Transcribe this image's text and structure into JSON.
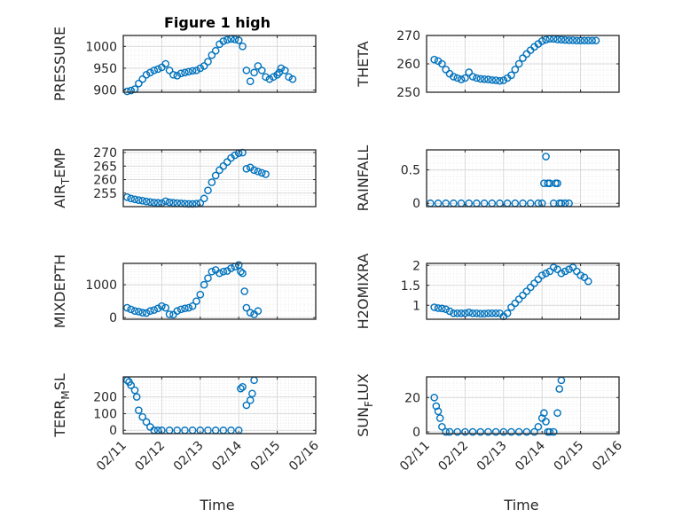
{
  "figure": {
    "title": "Figure 1 high",
    "marker_color": "#0072BD",
    "axes_color": "#262626",
    "x_tick_labels": [
      "02/11",
      "02/12",
      "02/13",
      "02/14",
      "02/15",
      "02/16"
    ],
    "x_label": "Time"
  },
  "chart_data": [
    {
      "type": "scatter",
      "ylabel": "PRESSURE",
      "xlim": [
        0,
        5
      ],
      "ylim": [
        895,
        1025
      ],
      "yticks": [
        900,
        950,
        1000
      ],
      "ytick_labels": [
        "900",
        "950",
        "1000"
      ],
      "x": [
        0.1,
        0.2,
        0.3,
        0.4,
        0.5,
        0.6,
        0.7,
        0.8,
        0.9,
        1.0,
        1.1,
        1.2,
        1.3,
        1.4,
        1.5,
        1.6,
        1.7,
        1.8,
        1.9,
        2.0,
        2.1,
        2.2,
        2.3,
        2.4,
        2.5,
        2.6,
        2.7,
        2.8,
        2.9,
        3.0,
        3.1,
        3.2,
        3.3,
        3.4,
        3.5,
        3.6,
        3.7,
        3.8,
        3.9,
        4.0,
        4.05,
        4.1,
        4.2,
        4.3,
        4.4
      ],
      "y": [
        897,
        899,
        902,
        915,
        925,
        935,
        940,
        945,
        948,
        952,
        960,
        945,
        935,
        933,
        938,
        940,
        942,
        944,
        945,
        950,
        955,
        965,
        980,
        990,
        1005,
        1012,
        1015,
        1017,
        1016,
        1014,
        1000,
        945,
        920,
        940,
        955,
        945,
        930,
        925,
        930,
        935,
        940,
        950,
        945,
        930,
        925
      ]
    },
    {
      "type": "scatter",
      "ylabel": "THETA",
      "xlim": [
        0,
        5
      ],
      "ylim": [
        250,
        270
      ],
      "yticks": [
        250,
        260,
        270
      ],
      "ytick_labels": [
        "250",
        "260",
        "270"
      ],
      "x": [
        0.2,
        0.3,
        0.4,
        0.5,
        0.6,
        0.7,
        0.8,
        0.9,
        1.0,
        1.1,
        1.2,
        1.3,
        1.4,
        1.5,
        1.6,
        1.7,
        1.8,
        1.9,
        2.0,
        2.1,
        2.2,
        2.3,
        2.4,
        2.5,
        2.6,
        2.7,
        2.8,
        2.9,
        3.0,
        3.1,
        3.2,
        3.3,
        3.4,
        3.5,
        3.6,
        3.7,
        3.8,
        3.9,
        4.0,
        4.1,
        4.2,
        4.3,
        4.4
      ],
      "y": [
        261.5,
        261,
        260,
        258,
        256.5,
        255.5,
        255,
        254.5,
        255,
        257,
        255.5,
        255,
        254.7,
        254.6,
        254.5,
        254.3,
        254.2,
        254.0,
        254.2,
        255,
        256,
        258,
        260,
        262,
        263.5,
        264.8,
        266,
        267,
        268,
        268.5,
        268.8,
        268.8,
        268.6,
        268.5,
        268.4,
        268.3,
        268.3,
        268.2,
        268.2,
        268.2,
        268.2,
        268.2,
        268.2
      ]
    },
    {
      "type": "scatter",
      "ylabel": "AIR_TEMP",
      "xlim": [
        0,
        5
      ],
      "ylim": [
        250,
        271
      ],
      "yticks": [
        255,
        260,
        265,
        270
      ],
      "ytick_labels": [
        "255",
        "260",
        "265",
        "270"
      ],
      "x": [
        0.1,
        0.2,
        0.3,
        0.4,
        0.5,
        0.6,
        0.7,
        0.8,
        0.9,
        1.0,
        1.1,
        1.2,
        1.3,
        1.4,
        1.5,
        1.6,
        1.7,
        1.8,
        1.9,
        2.0,
        2.1,
        2.2,
        2.3,
        2.4,
        2.5,
        2.6,
        2.7,
        2.8,
        2.9,
        3.0,
        3.1,
        3.2,
        3.3,
        3.4,
        3.5,
        3.6,
        3.7
      ],
      "y": [
        253.5,
        253,
        252.7,
        252.4,
        252.2,
        251.9,
        251.7,
        251.5,
        251.4,
        251.3,
        252,
        251.6,
        251.4,
        251.3,
        251.2,
        251.1,
        251.0,
        251.0,
        251.1,
        251.3,
        253,
        256,
        259,
        261.5,
        263.5,
        265,
        266.5,
        268,
        269,
        269.8,
        270,
        264,
        264.5,
        263.5,
        263,
        262.5,
        262
      ]
    },
    {
      "type": "scatter",
      "ylabel": "RAINFALL",
      "xlim": [
        0,
        5
      ],
      "ylim": [
        -0.05,
        0.8
      ],
      "yticks": [
        0,
        0.5
      ],
      "ytick_labels": [
        "0",
        "0.5"
      ],
      "x": [
        0.1,
        0.3,
        0.5,
        0.7,
        0.9,
        1.1,
        1.3,
        1.5,
        1.7,
        1.9,
        2.1,
        2.3,
        2.5,
        2.7,
        2.9,
        3.0,
        3.05,
        3.1,
        3.15,
        3.2,
        3.3,
        3.35,
        3.4,
        3.45,
        3.5,
        3.6,
        3.7
      ],
      "y": [
        0,
        0,
        0,
        0,
        0,
        0,
        0,
        0,
        0,
        0,
        0,
        0,
        0,
        0,
        0,
        0,
        0.3,
        0.7,
        0.3,
        0.3,
        0,
        0.3,
        0.3,
        0,
        0,
        0,
        0
      ]
    },
    {
      "type": "scatter",
      "ylabel": "MIXDEPTH",
      "xlim": [
        0,
        5
      ],
      "ylim": [
        -50,
        1650
      ],
      "yticks": [
        0,
        1000
      ],
      "ytick_labels": [
        "0",
        "1000"
      ],
      "x": [
        0.1,
        0.2,
        0.3,
        0.4,
        0.5,
        0.6,
        0.7,
        0.8,
        0.9,
        1.0,
        1.1,
        1.2,
        1.3,
        1.4,
        1.5,
        1.6,
        1.7,
        1.8,
        1.9,
        2.0,
        2.1,
        2.2,
        2.3,
        2.4,
        2.5,
        2.6,
        2.7,
        2.8,
        2.9,
        3.0,
        3.05,
        3.1,
        3.15,
        3.2,
        3.3,
        3.4,
        3.5
      ],
      "y": [
        300,
        250,
        200,
        180,
        150,
        140,
        200,
        230,
        280,
        350,
        300,
        100,
        90,
        200,
        250,
        280,
        300,
        350,
        500,
        700,
        1000,
        1200,
        1400,
        1450,
        1350,
        1400,
        1420,
        1500,
        1550,
        1600,
        1400,
        1350,
        800,
        300,
        150,
        100,
        200
      ]
    },
    {
      "type": "scatter",
      "ylabel": "H2OMIXRA",
      "xlim": [
        0,
        5
      ],
      "ylim": [
        0.65,
        2.05
      ],
      "yticks": [
        1,
        1.5,
        2
      ],
      "ytick_labels": [
        "1",
        "1.5",
        "2"
      ],
      "x": [
        0.2,
        0.3,
        0.4,
        0.5,
        0.6,
        0.7,
        0.8,
        0.9,
        1.0,
        1.1,
        1.2,
        1.3,
        1.4,
        1.5,
        1.6,
        1.7,
        1.8,
        1.9,
        2.0,
        2.1,
        2.2,
        2.3,
        2.4,
        2.5,
        2.6,
        2.7,
        2.8,
        2.9,
        3.0,
        3.1,
        3.2,
        3.3,
        3.4,
        3.5,
        3.6,
        3.7,
        3.8,
        3.9,
        4.0,
        4.1,
        4.2
      ],
      "y": [
        0.95,
        0.93,
        0.92,
        0.9,
        0.85,
        0.8,
        0.8,
        0.8,
        0.8,
        0.82,
        0.8,
        0.8,
        0.79,
        0.79,
        0.8,
        0.8,
        0.8,
        0.8,
        0.72,
        0.8,
        0.95,
        1.05,
        1.15,
        1.25,
        1.35,
        1.45,
        1.55,
        1.65,
        1.75,
        1.8,
        1.85,
        1.95,
        1.9,
        1.8,
        1.85,
        1.9,
        1.95,
        1.85,
        1.75,
        1.7,
        1.6
      ]
    },
    {
      "type": "scatter",
      "ylabel": "TERR_MSL",
      "xlim": [
        0,
        5
      ],
      "ylim": [
        -20,
        320
      ],
      "yticks": [
        0,
        100,
        200
      ],
      "ytick_labels": [
        "0",
        "100",
        "200"
      ],
      "x": [
        0.1,
        0.15,
        0.2,
        0.3,
        0.35,
        0.4,
        0.5,
        0.6,
        0.7,
        0.8,
        0.9,
        1.0,
        1.2,
        1.4,
        1.6,
        1.8,
        2.0,
        2.2,
        2.4,
        2.6,
        2.8,
        3.0,
        3.05,
        3.1,
        3.2,
        3.3,
        3.35,
        3.4
      ],
      "y": [
        300,
        290,
        270,
        240,
        200,
        120,
        80,
        50,
        20,
        0,
        0,
        0,
        0,
        0,
        0,
        0,
        0,
        0,
        0,
        0,
        0,
        0,
        250,
        260,
        150,
        180,
        220,
        300
      ]
    },
    {
      "type": "scatter",
      "ylabel": "SUN_FLUX",
      "xlim": [
        0,
        5
      ],
      "ylim": [
        -1,
        32
      ],
      "yticks": [
        0,
        20
      ],
      "ytick_labels": [
        "0",
        "20"
      ],
      "x": [
        0.2,
        0.25,
        0.3,
        0.35,
        0.4,
        0.5,
        0.6,
        0.8,
        1.0,
        1.2,
        1.4,
        1.6,
        1.8,
        2.0,
        2.2,
        2.4,
        2.6,
        2.8,
        2.9,
        3.0,
        3.05,
        3.1,
        3.15,
        3.2,
        3.3,
        3.4,
        3.45,
        3.5
      ],
      "y": [
        20,
        15,
        12,
        8,
        3,
        0,
        0,
        0,
        0,
        0,
        0,
        0,
        0,
        0,
        0,
        0,
        0,
        0,
        3,
        8,
        11,
        6,
        0,
        0,
        0,
        11,
        25,
        30
      ]
    }
  ],
  "ylabel_parts": [
    {
      "base": "PRESSURE",
      "sub": "",
      "tail": ""
    },
    {
      "base": "THETA",
      "sub": "",
      "tail": ""
    },
    {
      "base": "AIR",
      "sub": "T",
      "tail": "EMP"
    },
    {
      "base": "RAINFALL",
      "sub": "",
      "tail": ""
    },
    {
      "base": "MIXDEPTH",
      "sub": "",
      "tail": ""
    },
    {
      "base": "H2OMIXRA",
      "sub": "",
      "tail": ""
    },
    {
      "base": "TERR",
      "sub": "M",
      "tail": "SL"
    },
    {
      "base": "SUN",
      "sub": "F",
      "tail": "LUX"
    }
  ]
}
